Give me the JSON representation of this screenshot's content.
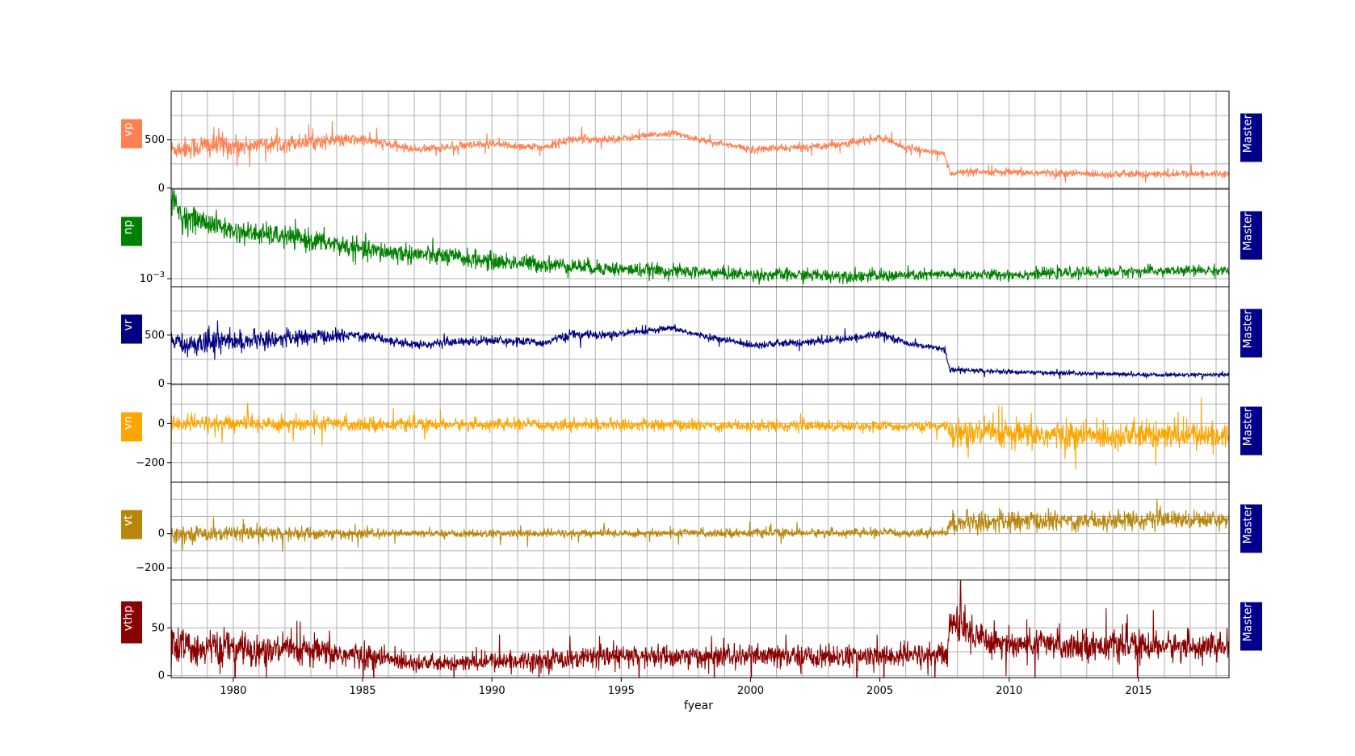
{
  "chart_data": {
    "type": "line",
    "xlabel": "fyear",
    "xlim": [
      1977.6,
      2018.5
    ],
    "xticks": [
      1980,
      1985,
      1990,
      1995,
      2000,
      2005,
      2010,
      2015
    ],
    "grid": true,
    "side_label": "Master",
    "panels": [
      {
        "name": "vp",
        "color": "#ff8050",
        "scale": "linear",
        "ylim": [
          -10,
          1000
        ],
        "yticks": [
          {
            "value": 0,
            "label": "0"
          },
          {
            "value": 500,
            "label": "500"
          }
        ],
        "series": {
          "x": [
            1977.6,
            1979.5,
            1980,
            1983,
            1985,
            1987,
            1990,
            1992,
            1993,
            1995,
            1997,
            1998,
            2000,
            2002,
            2004,
            2005,
            2006,
            2007.5,
            2007.7,
            2010,
            2015,
            2018.5
          ],
          "values": [
            400,
            450,
            430,
            480,
            500,
            400,
            450,
            420,
            500,
            510,
            570,
            500,
            400,
            420,
            470,
            520,
            420,
            350,
            160,
            160,
            140,
            150
          ],
          "noise": [
            100,
            150,
            100,
            80,
            60,
            40,
            50,
            40,
            50,
            40,
            30,
            30,
            40,
            40,
            40,
            40,
            30,
            30,
            40,
            40,
            40,
            35
          ]
        }
      },
      {
        "name": "np",
        "color": "#008000",
        "scale": "log",
        "ylim": [
          0.0006,
          0.3
        ],
        "yticks": [
          {
            "value": 0.001,
            "label": "10^-3"
          }
        ],
        "series": {
          "x": [
            1977.6,
            1978,
            1980,
            1985,
            1990,
            1995,
            2000,
            2005,
            2007.7,
            2010,
            2015,
            2018.5
          ],
          "values": [
            0.15,
            0.05,
            0.02,
            0.006,
            0.003,
            0.0018,
            0.0013,
            0.0012,
            0.0013,
            0.0013,
            0.0016,
            0.0017
          ],
          "noise": [
            0.4,
            0.35,
            0.3,
            0.3,
            0.25,
            0.2,
            0.18,
            0.18,
            0.15,
            0.15,
            0.15,
            0.15
          ]
        }
      },
      {
        "name": "vr",
        "color": "#000080",
        "scale": "linear",
        "ylim": [
          -10,
          1000
        ],
        "yticks": [
          {
            "value": 0,
            "label": "0"
          },
          {
            "value": 500,
            "label": "500"
          }
        ],
        "series": {
          "x": [
            1977.6,
            1979.5,
            1980,
            1983,
            1985,
            1987,
            1990,
            1992,
            1993,
            1995,
            1997,
            1998,
            2000,
            2002,
            2004,
            2005,
            2006,
            2007.5,
            2007.7,
            2010,
            2015,
            2018.5
          ],
          "values": [
            400,
            450,
            430,
            480,
            500,
            400,
            450,
            420,
            500,
            510,
            570,
            500,
            400,
            420,
            470,
            520,
            420,
            350,
            140,
            120,
            90,
            90
          ],
          "noise": [
            100,
            150,
            100,
            80,
            60,
            40,
            50,
            40,
            50,
            40,
            30,
            30,
            40,
            40,
            40,
            40,
            30,
            30,
            30,
            25,
            20,
            20
          ]
        }
      },
      {
        "name": "vn",
        "color": "#ffa500",
        "scale": "linear",
        "ylim": [
          -300,
          200
        ],
        "yticks": [
          {
            "value": -200,
            "label": "−200"
          },
          {
            "value": 0,
            "label": "0"
          }
        ],
        "series": {
          "x": [
            1977.6,
            1982,
            1987,
            1990,
            2000,
            2007.6,
            2007.7,
            2010,
            2018.5
          ],
          "values": [
            0,
            0,
            -5,
            -5,
            -10,
            -15,
            -40,
            -60,
            -60
          ],
          "noise": [
            45,
            45,
            30,
            30,
            30,
            25,
            80,
            75,
            70
          ]
        }
      },
      {
        "name": "vt",
        "color": "#b8860b",
        "scale": "linear",
        "ylim": [
          -270,
          300
        ],
        "yticks": [
          {
            "value": -200,
            "label": "−200"
          },
          {
            "value": 0,
            "label": "0"
          }
        ],
        "series": {
          "x": [
            1977.6,
            1982,
            1987,
            1990,
            2000,
            2007.6,
            2007.7,
            2010,
            2015,
            2018.5
          ],
          "values": [
            0,
            0,
            0,
            0,
            5,
            5,
            60,
            70,
            80,
            85
          ],
          "noise": [
            45,
            45,
            20,
            25,
            25,
            25,
            60,
            60,
            55,
            50
          ]
        }
      },
      {
        "name": "vthp",
        "color": "#8b0000",
        "scale": "linear",
        "ylim": [
          -2,
          100
        ],
        "yticks": [
          {
            "value": 0,
            "label": "0"
          },
          {
            "value": 50,
            "label": "50"
          }
        ],
        "series": {
          "x": [
            1977.6,
            1980,
            1983,
            1985,
            1988,
            1990,
            1995,
            2000,
            2005,
            2007.6,
            2007.7,
            2009,
            2010,
            2018.5
          ],
          "values": [
            30,
            28,
            25,
            20,
            12,
            15,
            20,
            20,
            20,
            22,
            55,
            40,
            33,
            30
          ],
          "noise": [
            20,
            18,
            16,
            14,
            8,
            10,
            12,
            12,
            12,
            14,
            25,
            20,
            16,
            14
          ]
        }
      }
    ]
  }
}
